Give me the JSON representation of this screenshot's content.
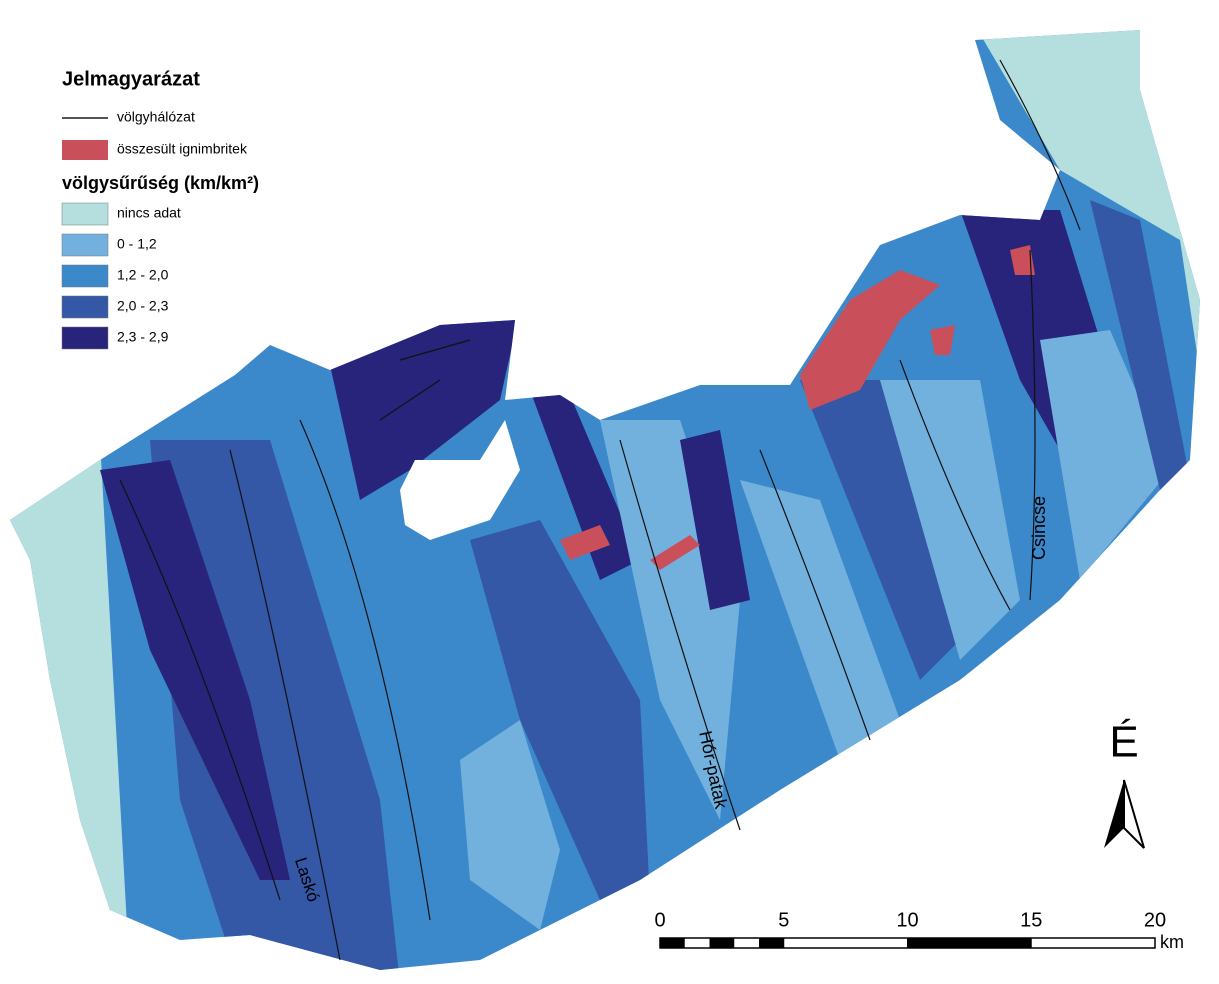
{
  "legend": {
    "title": "Jelmagyarázat",
    "items": [
      {
        "label": "völgyhálózat",
        "color": "#1a1a1a"
      },
      {
        "label": "összesült ignimbritek",
        "color": "#c9505a"
      }
    ],
    "density_title": "völgysűrűség (km/km²)",
    "classes": [
      {
        "label": "nincs adat",
        "color": "#b5dfdf"
      },
      {
        "label": "0  - 1,2",
        "color": "#72b1de"
      },
      {
        "label": "1,2  - 2,0",
        "color": "#3b88cb"
      },
      {
        "label": "2,0  - 2,3",
        "color": "#3457a6"
      },
      {
        "label": "2,3  - 2,9",
        "color": "#28237b"
      }
    ]
  },
  "places": [
    "Laskó",
    "Hór-patak",
    "Csincse"
  ],
  "north": "É",
  "scale_bar": {
    "ticks": [
      0,
      5,
      10,
      15,
      20
    ],
    "unit": "km"
  }
}
